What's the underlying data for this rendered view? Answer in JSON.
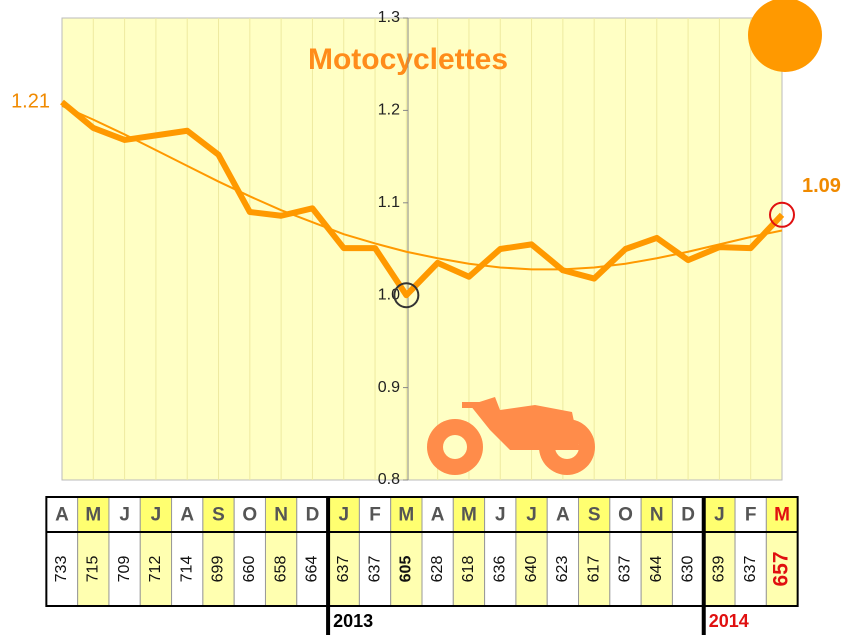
{
  "chart_data": {
    "type": "line",
    "title": "Motocyclettes",
    "categories": [
      "A",
      "M",
      "J",
      "J",
      "A",
      "S",
      "O",
      "N",
      "D",
      "J",
      "F",
      "M",
      "A",
      "M",
      "J",
      "J",
      "A",
      "S",
      "O",
      "N",
      "D",
      "J",
      "F",
      "M"
    ],
    "series": [
      {
        "color": "#ff9900",
        "values": [
          1.209,
          1.181,
          1.168,
          1.173,
          1.178,
          1.152,
          1.09,
          1.086,
          1.094,
          1.051,
          1.051,
          1.0,
          1.035,
          1.02,
          1.05,
          1.055,
          1.027,
          1.018,
          1.05,
          1.062,
          1.038,
          1.052,
          1.051,
          1.087
        ],
        "value_labels": [
          "1.21",
          null,
          null,
          null,
          null,
          null,
          null,
          null,
          null,
          null,
          null,
          null,
          null,
          null,
          null,
          null,
          null,
          null,
          null,
          null,
          null,
          null,
          null,
          "1.09"
        ]
      },
      {
        "color": "#ff9900",
        "values": [
          1.205,
          1.19,
          1.174,
          1.157,
          1.14,
          1.123,
          1.107,
          1.092,
          1.079,
          1.066,
          1.056,
          1.047,
          1.04,
          1.034,
          1.03,
          1.028,
          1.028,
          1.03,
          1.034,
          1.04,
          1.047,
          1.055,
          1.063,
          1.07
        ]
      }
    ],
    "ylim": [
      0.8,
      1.3
    ],
    "yticks": [
      0.8,
      0.9,
      {
        "value": 1,
        "label": "1.0"
      },
      1.1,
      1.2,
      1.3
    ],
    "grid": true,
    "table": {
      "counts": [
        733,
        715,
        709,
        712,
        714,
        699,
        660,
        658,
        664,
        637,
        637,
        605,
        628,
        618,
        636,
        640,
        623,
        617,
        637,
        644,
        630,
        639,
        637,
        657
      ],
      "years": [
        "2013",
        "2014"
      ]
    }
  }
}
